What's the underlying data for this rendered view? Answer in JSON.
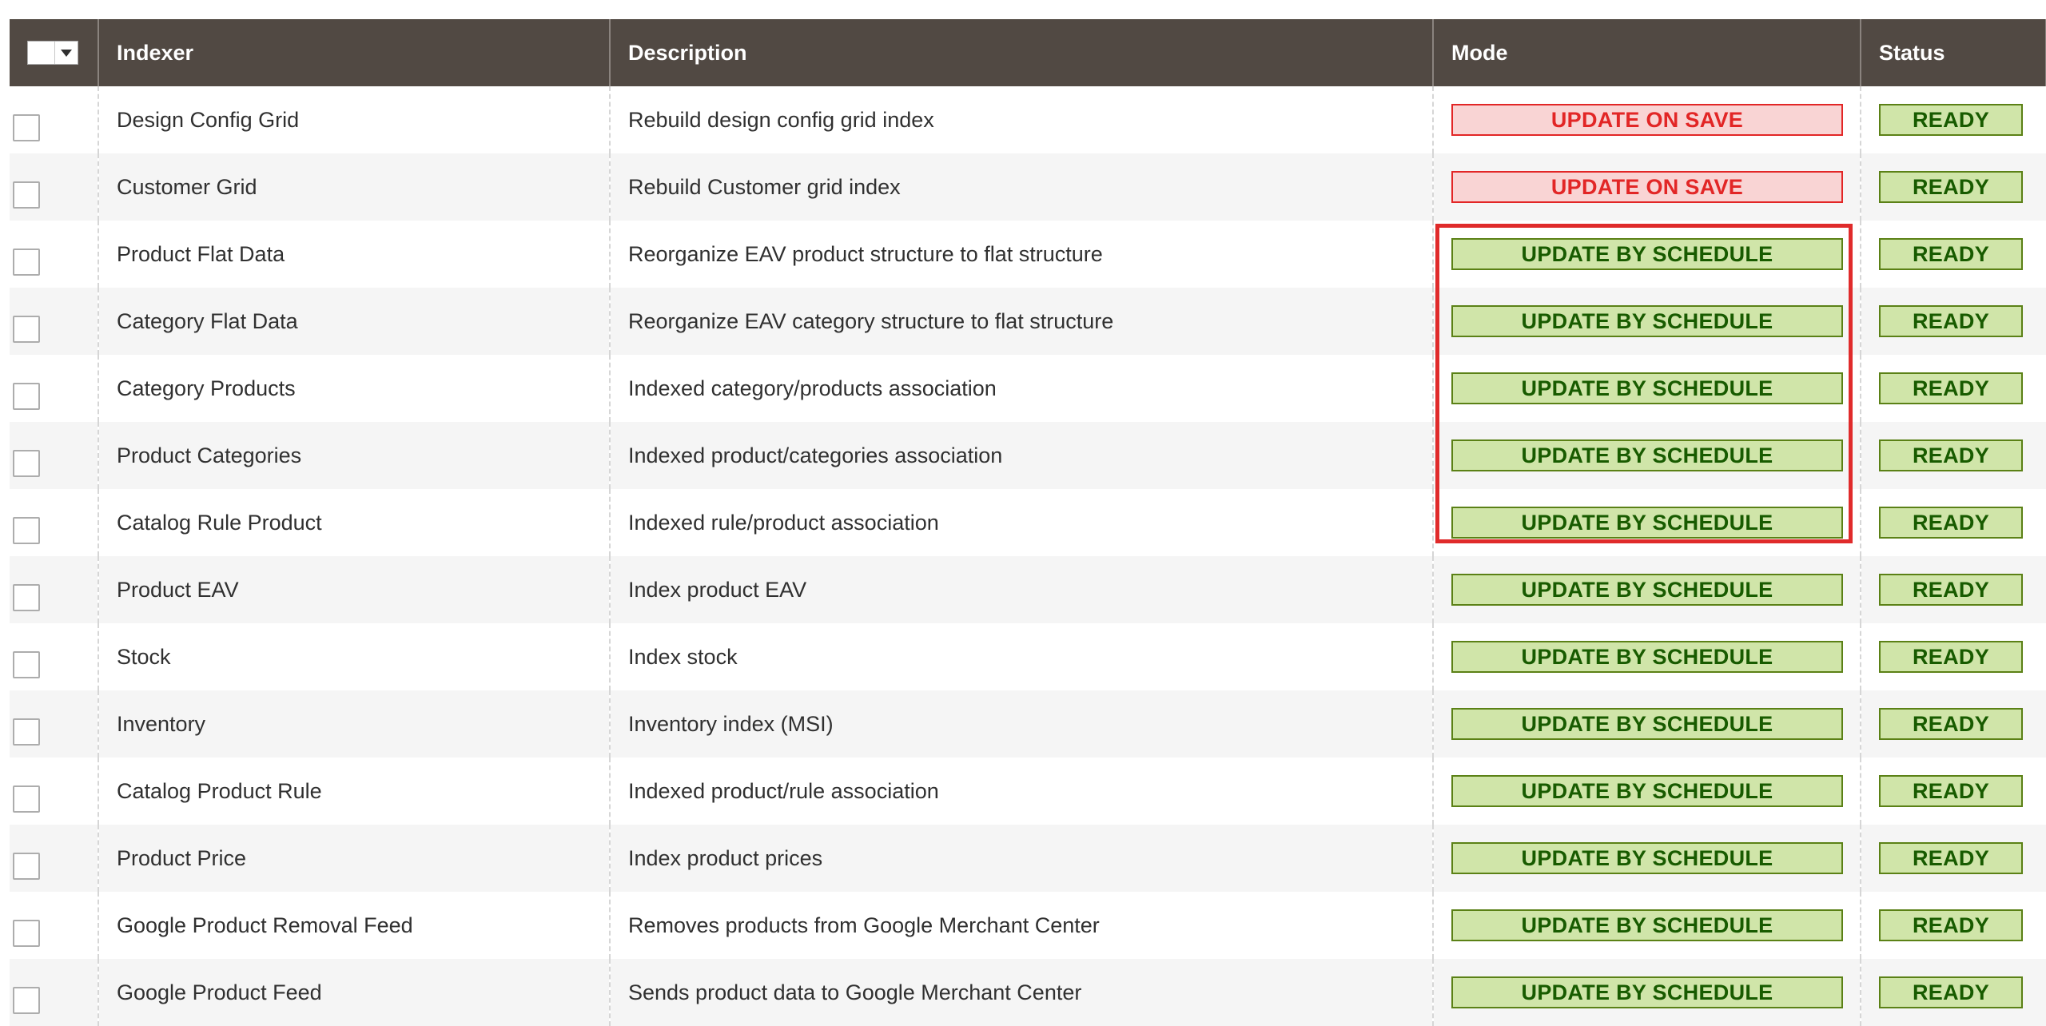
{
  "grid": {
    "headers": {
      "indexer": "Indexer",
      "description": "Description",
      "mode": "Mode",
      "status": "Status"
    },
    "rows": [
      {
        "indexer": "Design Config Grid",
        "description": "Rebuild design config grid index",
        "mode": "UPDATE ON SAVE",
        "status": "READY"
      },
      {
        "indexer": "Customer Grid",
        "description": "Rebuild Customer grid index",
        "mode": "UPDATE ON SAVE",
        "status": "READY"
      },
      {
        "indexer": "Product Flat Data",
        "description": "Reorganize EAV product structure to flat structure",
        "mode": "UPDATE BY SCHEDULE",
        "status": "READY"
      },
      {
        "indexer": "Category Flat Data",
        "description": "Reorganize EAV category structure to flat structure",
        "mode": "UPDATE BY SCHEDULE",
        "status": "READY"
      },
      {
        "indexer": "Category Products",
        "description": "Indexed category/products association",
        "mode": "UPDATE BY SCHEDULE",
        "status": "READY"
      },
      {
        "indexer": "Product Categories",
        "description": "Indexed product/categories association",
        "mode": "UPDATE BY SCHEDULE",
        "status": "READY"
      },
      {
        "indexer": "Catalog Rule Product",
        "description": "Indexed rule/product association",
        "mode": "UPDATE BY SCHEDULE",
        "status": "READY"
      },
      {
        "indexer": "Product EAV",
        "description": "Index product EAV",
        "mode": "UPDATE BY SCHEDULE",
        "status": "READY"
      },
      {
        "indexer": "Stock",
        "description": "Index stock",
        "mode": "UPDATE BY SCHEDULE",
        "status": "READY"
      },
      {
        "indexer": "Inventory",
        "description": "Inventory index (MSI)",
        "mode": "UPDATE BY SCHEDULE",
        "status": "READY"
      },
      {
        "indexer": "Catalog Product Rule",
        "description": "Indexed product/rule association",
        "mode": "UPDATE BY SCHEDULE",
        "status": "READY"
      },
      {
        "indexer": "Product Price",
        "description": "Index product prices",
        "mode": "UPDATE BY SCHEDULE",
        "status": "READY"
      },
      {
        "indexer": "Google Product Removal Feed",
        "description": "Removes products from Google Merchant Center",
        "mode": "UPDATE BY SCHEDULE",
        "status": "READY"
      },
      {
        "indexer": "Google Product Feed",
        "description": "Sends product data to Google Merchant Center",
        "mode": "UPDATE BY SCHEDULE",
        "status": "READY"
      }
    ]
  },
  "colors": {
    "header_bg": "#514943",
    "update_on_save": "#e22626",
    "update_by_schedule": "#185b00",
    "highlight_box": "#e02b2b"
  },
  "icons": {
    "mass_select": "chevron-down-icon"
  }
}
